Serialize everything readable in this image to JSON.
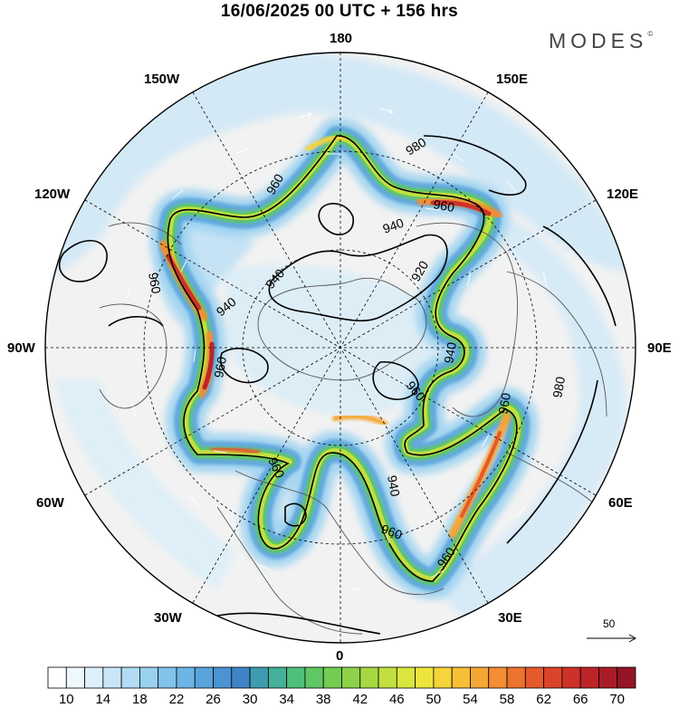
{
  "title": "16/06/2025  00 UTC  + 156 hrs",
  "logo": "MODES",
  "logo_mark": "©",
  "longitude_labels": {
    "top": "180",
    "top_left": "150W",
    "top_right": "150E",
    "upper_left": "120W",
    "upper_right": "120E",
    "left": "90W",
    "right": "90E",
    "lower_left": "60W",
    "lower_right": "60E",
    "bottom_left": "30W",
    "bottom_right": "30E",
    "bottom": "0"
  },
  "contour_labels": [
    "980",
    "960",
    "960",
    "940",
    "920",
    "940",
    "960",
    "940",
    "960",
    "960",
    "940",
    "980",
    "960",
    "960",
    "940",
    "960",
    "960"
  ],
  "reference_vector": {
    "label": "50"
  },
  "colorbar": {
    "labels": [
      "10",
      "14",
      "18",
      "22",
      "26",
      "30",
      "34",
      "38",
      "42",
      "46",
      "50",
      "54",
      "58",
      "62",
      "66",
      "70"
    ],
    "colors": [
      "#ffffff",
      "#eef7fc",
      "#ddeffa",
      "#c8e6f7",
      "#b1dcf3",
      "#99d0f0",
      "#82c3eb",
      "#6cb5e4",
      "#5aa4dc",
      "#4b93d2",
      "#3e84c7",
      "#3e9bb0",
      "#46b09a",
      "#50bf7c",
      "#5fc764",
      "#74cc52",
      "#8ed24a",
      "#a6d843",
      "#c1df40",
      "#dae63f",
      "#ede53d",
      "#f6d43a",
      "#f7bf37",
      "#f6a635",
      "#f48d33",
      "#ee7230",
      "#e6592d",
      "#db442b",
      "#cd3229",
      "#bc2528",
      "#a91c26",
      "#941525"
    ]
  }
}
